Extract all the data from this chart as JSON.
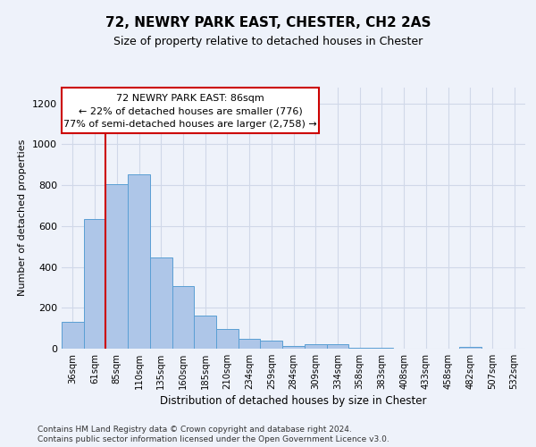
{
  "title1": "72, NEWRY PARK EAST, CHESTER, CH2 2AS",
  "title2": "Size of property relative to detached houses in Chester",
  "xlabel": "Distribution of detached houses by size in Chester",
  "ylabel": "Number of detached properties",
  "categories": [
    "36sqm",
    "61sqm",
    "85sqm",
    "110sqm",
    "135sqm",
    "160sqm",
    "185sqm",
    "210sqm",
    "234sqm",
    "259sqm",
    "284sqm",
    "309sqm",
    "334sqm",
    "358sqm",
    "383sqm",
    "408sqm",
    "433sqm",
    "458sqm",
    "482sqm",
    "507sqm",
    "532sqm"
  ],
  "values": [
    130,
    635,
    805,
    855,
    445,
    305,
    160,
    95,
    50,
    38,
    15,
    20,
    20,
    5,
    5,
    2,
    2,
    2,
    10,
    2,
    2
  ],
  "bar_color": "#aec6e8",
  "bar_edge_color": "#5a9fd4",
  "grid_color": "#d0d8e8",
  "annotation_box_text1": "72 NEWRY PARK EAST: 86sqm",
  "annotation_box_text2": "← 22% of detached houses are smaller (776)",
  "annotation_box_text3": "77% of semi-detached houses are larger (2,758) →",
  "box_edge_color": "#cc0000",
  "vline_color": "#cc0000",
  "vline_x": 1.5,
  "ylim": [
    0,
    1280
  ],
  "yticks": [
    0,
    200,
    400,
    600,
    800,
    1000,
    1200
  ],
  "footnote1": "Contains HM Land Registry data © Crown copyright and database right 2024.",
  "footnote2": "Contains public sector information licensed under the Open Government Licence v3.0.",
  "background_color": "#eef2fa",
  "plot_bg_color": "#eef2fa"
}
